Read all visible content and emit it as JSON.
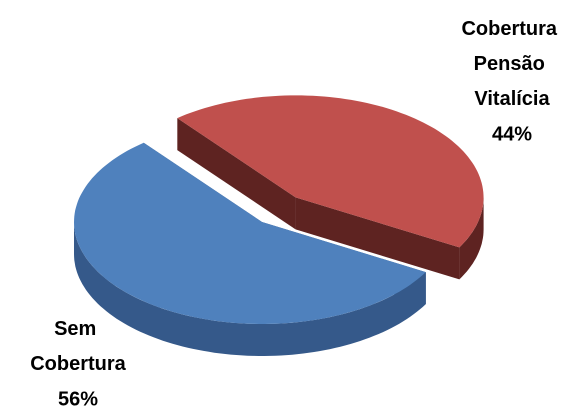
{
  "chart_data": {
    "type": "pie",
    "categories": [
      "Cobertura Pensão Vitalícia",
      "Sem Cobertura"
    ],
    "values": [
      44,
      56
    ],
    "value_labels": [
      "44%",
      "56%"
    ],
    "colors": [
      "#c0504d",
      "#4f81bd"
    ],
    "side_colors": [
      "#5e2321",
      "#35598a"
    ]
  }
}
